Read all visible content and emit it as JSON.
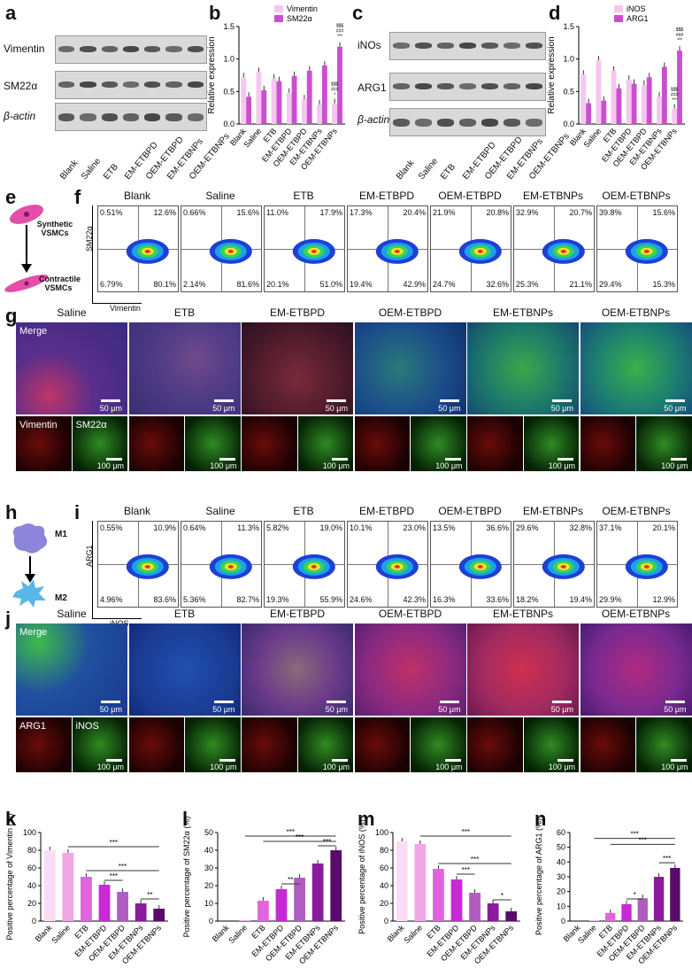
{
  "panels": {
    "a": "a",
    "b": "b",
    "c": "c",
    "d": "d",
    "e": "e",
    "f": "f",
    "g": "g",
    "h": "h",
    "i": "i",
    "j": "j",
    "k": "k",
    "l": "l",
    "m": "m",
    "n": "n"
  },
  "groups6": [
    "Blank",
    "Saline",
    "ETB",
    "EM-ETBPD",
    "OEM-ETBPD",
    "EM-ETBNPs",
    "OEM-ETBNPs"
  ],
  "groups_img": [
    "Saline",
    "ETB",
    "EM-ETBPD",
    "OEM-ETBPD",
    "EM-ETBNPs",
    "OEM-ETBNPs"
  ],
  "blot_a": {
    "rows": [
      "Vimentin",
      "SM22α",
      "β-actin"
    ]
  },
  "blot_c": {
    "rows": [
      "iNOs",
      "ARG1",
      "β-actin"
    ]
  },
  "diagram_e": {
    "top": "Synthetic VSMCs",
    "bottom": "Contractile VSMCs"
  },
  "diagram_h": {
    "top": "M1",
    "bottom": "M2"
  },
  "flow_f": {
    "yaxis": "SM22α",
    "xaxis": "Vimentin",
    "quads": [
      [
        "0.51%",
        "12.6%",
        "6.79%",
        "80.1%"
      ],
      [
        "0.66%",
        "15.6%",
        "2.14%",
        "81.6%"
      ],
      [
        "11.0%",
        "17.9%",
        "20.1%",
        "51.0%"
      ],
      [
        "17.3%",
        "20.4%",
        "19.4%",
        "42.9%"
      ],
      [
        "21.9%",
        "20.8%",
        "24.7%",
        "32.6%"
      ],
      [
        "32.9%",
        "20.7%",
        "25.3%",
        "21.1%"
      ],
      [
        "39.8%",
        "15.6%",
        "29.4%",
        "15.3%"
      ]
    ]
  },
  "flow_i": {
    "yaxis": "ARG1",
    "xaxis": "iNOS",
    "quads": [
      [
        "0.55%",
        "10.9%",
        "4.96%",
        "83.6%"
      ],
      [
        "0.64%",
        "11.3%",
        "5.36%",
        "82.7%"
      ],
      [
        "5.82%",
        "19.0%",
        "19.3%",
        "55.9%"
      ],
      [
        "10.1%",
        "23.0%",
        "24.6%",
        "42.3%"
      ],
      [
        "13.5%",
        "36.6%",
        "16.3%",
        "33.6%"
      ],
      [
        "29.6%",
        "32.8%",
        "18.2%",
        "19.4%"
      ],
      [
        "37.1%",
        "20.1%",
        "29.9%",
        "12.9%"
      ]
    ]
  },
  "micro_g": {
    "merge": "Merge",
    "ch1": "Vimentin",
    "ch2": "SM22α",
    "scale_big": "50 μm",
    "scale_small": "100 μm"
  },
  "micro_j": {
    "merge": "Merge",
    "ch1": "ARG1",
    "ch2": "iNOS",
    "scale_big": "50 μm",
    "scale_small": "100 μm"
  },
  "chart_data": [
    {
      "panel": "b",
      "type": "bar",
      "ylabel": "Relative expression",
      "ylim": [
        0,
        1.5
      ],
      "yticks": [
        "0.0",
        "0.5",
        "1.0",
        "1.5"
      ],
      "categories": [
        "Blank",
        "Saline",
        "ETB",
        "EM-ETBPD",
        "OEM-ETBPD",
        "EM-ETBNPs",
        "OEM-ETBNPs"
      ],
      "series": [
        {
          "name": "Vimentin",
          "color": "#f6c6f0",
          "values": [
            0.72,
            0.8,
            0.7,
            0.48,
            0.38,
            0.3,
            0.32
          ]
        },
        {
          "name": "SM22α",
          "color": "#c94fd0",
          "values": [
            0.42,
            0.52,
            0.66,
            0.74,
            0.82,
            0.9,
            1.19
          ]
        }
      ],
      "sig": [
        "$$$",
        "###",
        "***",
        "$$$",
        "###",
        "*"
      ]
    },
    {
      "panel": "d",
      "type": "bar",
      "ylabel": "Relative expression",
      "ylim": [
        0,
        1.5
      ],
      "yticks": [
        "0.0",
        "0.5",
        "1.0",
        "1.5"
      ],
      "categories": [
        "Blank",
        "Saline",
        "ETB",
        "EM-ETBPD",
        "OEM-ETBPD",
        "EM-ETBNPs",
        "OEM-ETBNPs"
      ],
      "series": [
        {
          "name": "iNOS",
          "color": "#f6c6f0",
          "values": [
            0.76,
            0.98,
            0.82,
            0.68,
            0.6,
            0.42,
            0.24
          ]
        },
        {
          "name": "ARG1",
          "color": "#c94fd0",
          "values": [
            0.32,
            0.36,
            0.55,
            0.62,
            0.72,
            0.88,
            1.13
          ]
        }
      ],
      "sig": [
        "$$$",
        "###",
        "***",
        "$$$",
        "###",
        "***"
      ]
    },
    {
      "panel": "k",
      "type": "bar",
      "ylabel": "Positive percentage of Vimentin (%)",
      "ylim": [
        0,
        100
      ],
      "yticks": [
        "0",
        "20",
        "40",
        "60",
        "80",
        "100"
      ],
      "categories": [
        "Blank",
        "Saline",
        "ETB",
        "EM-ETBPD",
        "OEM-ETBPD",
        "EM-ETBNPs",
        "OEM-ETBNPs"
      ],
      "values": [
        80,
        77,
        50,
        41,
        33,
        20,
        14
      ],
      "sig": [
        "***",
        "***",
        "***",
        "**"
      ]
    },
    {
      "panel": "l",
      "type": "bar",
      "ylabel": "Positive percentage of SM22α (%)",
      "ylim": [
        0,
        50
      ],
      "yticks": [
        "0",
        "10",
        "20",
        "30",
        "40",
        "50"
      ],
      "categories": [
        "Blank",
        "Saline",
        "ETB",
        "EM-ETBPD",
        "OEM-ETBPD",
        "EM-ETBNPs",
        "OEM-ETBNPs"
      ],
      "values": [
        0,
        0.5,
        11.5,
        18,
        24.5,
        32.5,
        40
      ],
      "sig": [
        "***",
        "***",
        "***",
        "**"
      ]
    },
    {
      "panel": "m",
      "type": "bar",
      "ylabel": "Positive percentage of iNOS (%)",
      "ylim": [
        0,
        100
      ],
      "yticks": [
        "0",
        "20",
        "40",
        "60",
        "80",
        "100"
      ],
      "categories": [
        "Blank",
        "Saline",
        "ETB",
        "EM-ETBPD",
        "OEM-ETBPD",
        "EM-ETBNPs",
        "OEM-ETBNPs"
      ],
      "values": [
        90,
        87,
        59,
        47,
        32,
        20,
        11
      ],
      "sig": [
        "***",
        "***",
        "***",
        "*"
      ]
    },
    {
      "panel": "n",
      "type": "bar",
      "ylabel": "Positive percentage of ARG1 (%)",
      "ylim": [
        0,
        60
      ],
      "yticks": [
        "0",
        "10",
        "20",
        "30",
        "40",
        "50",
        "60"
      ],
      "categories": [
        "Blank",
        "Saline",
        "ETB",
        "EM-ETBPD",
        "OEM-ETBPD",
        "EM-ETBNPs",
        "OEM-ETBNPs"
      ],
      "values": [
        0,
        0.5,
        5.5,
        11.5,
        15.5,
        30,
        36
      ],
      "sig": [
        "***",
        "***",
        "***",
        "*"
      ]
    }
  ]
}
